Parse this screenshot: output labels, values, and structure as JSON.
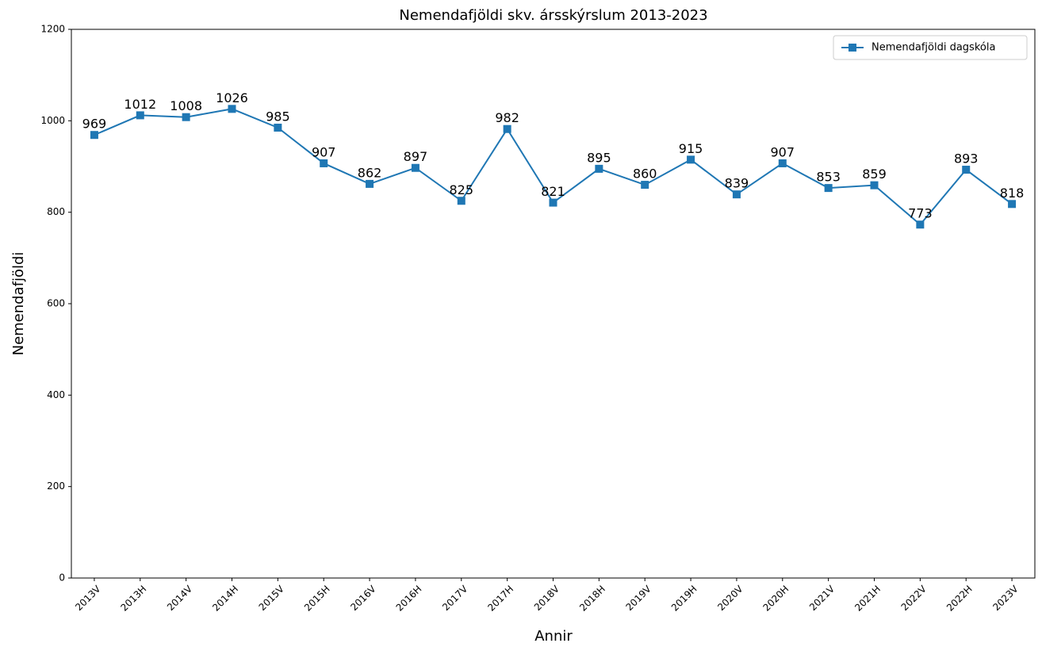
{
  "chart_data": {
    "type": "line",
    "title": "Nemendafjöldi skv. ársskýrslum 2013-2023",
    "x_label": "Annir",
    "y_label": "Nemendafjöldi",
    "categories": [
      "2013V",
      "2013H",
      "2014V",
      "2014H",
      "2015V",
      "2015H",
      "2016V",
      "2016H",
      "2017V",
      "2017H",
      "2018V",
      "2018H",
      "2019V",
      "2019H",
      "2020V",
      "2020H",
      "2021V",
      "2021H",
      "2022V",
      "2022H",
      "2023V"
    ],
    "series": [
      {
        "name": "Nemendafjöldi dagskóla",
        "color": "#1f77b4",
        "values": [
          969,
          1012,
          1008,
          1026,
          985,
          907,
          862,
          897,
          825,
          982,
          821,
          895,
          860,
          915,
          839,
          907,
          853,
          859,
          773,
          893,
          818
        ]
      }
    ],
    "ylim": [
      0,
      1200
    ],
    "yticks": [
      0,
      200,
      400,
      600,
      800,
      1000,
      1200
    ],
    "legend": "upper right",
    "grid": false
  }
}
